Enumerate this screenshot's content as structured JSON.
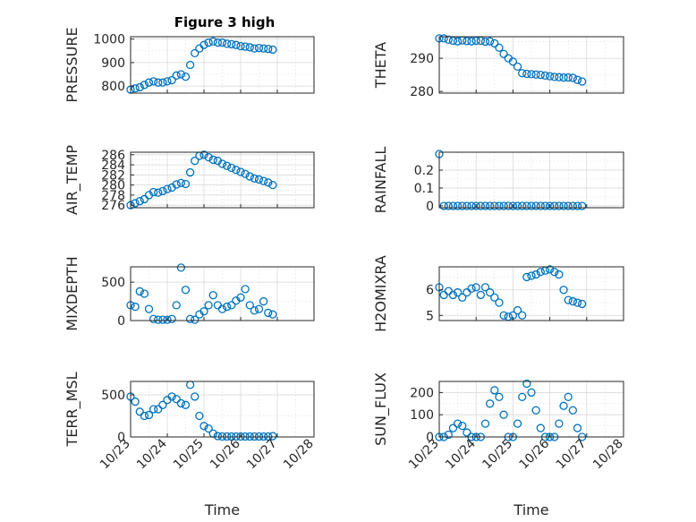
{
  "figure": {
    "title": "Figure 3 high",
    "colors": {
      "marker": "#0072BD",
      "axis": "#262626",
      "grid": "#d9d9d9"
    }
  },
  "chart_data": [
    {
      "type": "scatter",
      "ylabel": "PRESSURE",
      "title": "Figure 3 high",
      "xlim": [
        "10/23",
        "10/28"
      ],
      "ylim": [
        770,
        1010
      ],
      "yticks": [
        800,
        900,
        1000
      ],
      "grid": true,
      "marker": "o",
      "x": [
        "10/23 00:00",
        "10/23 03:00",
        "10/23 06:00",
        "10/23 09:00",
        "10/23 12:00",
        "10/23 15:00",
        "10/23 18:00",
        "10/23 21:00",
        "10/24 00:00",
        "10/24 03:00",
        "10/24 06:00",
        "10/24 09:00",
        "10/24 12:00",
        "10/24 15:00",
        "10/24 18:00",
        "10/24 21:00",
        "10/25 00:00",
        "10/25 03:00",
        "10/25 06:00",
        "10/25 09:00",
        "10/25 12:00",
        "10/25 15:00",
        "10/25 18:00",
        "10/25 21:00",
        "10/26 00:00",
        "10/26 03:00",
        "10/26 06:00",
        "10/26 09:00",
        "10/26 12:00",
        "10/26 15:00",
        "10/26 18:00",
        "10/26 21:00"
      ],
      "y": [
        785,
        790,
        795,
        805,
        815,
        820,
        815,
        815,
        820,
        825,
        845,
        850,
        840,
        890,
        940,
        960,
        975,
        985,
        990,
        985,
        985,
        980,
        978,
        975,
        970,
        968,
        965,
        960,
        962,
        960,
        958,
        955
      ]
    },
    {
      "type": "scatter",
      "ylabel": "THETA",
      "xlim": [
        "10/23",
        "10/28"
      ],
      "ylim": [
        279.5,
        296.5
      ],
      "yticks": [
        280,
        290
      ],
      "grid": true,
      "marker": "o",
      "x": [
        "10/23 00:00",
        "10/23 03:00",
        "10/23 06:00",
        "10/23 09:00",
        "10/23 12:00",
        "10/23 15:00",
        "10/23 18:00",
        "10/23 21:00",
        "10/24 00:00",
        "10/24 03:00",
        "10/24 06:00",
        "10/24 09:00",
        "10/24 12:00",
        "10/24 15:00",
        "10/24 18:00",
        "10/24 21:00",
        "10/25 00:00",
        "10/25 03:00",
        "10/25 06:00",
        "10/25 09:00",
        "10/25 12:00",
        "10/25 15:00",
        "10/25 18:00",
        "10/25 21:00",
        "10/26 00:00",
        "10/26 03:00",
        "10/26 06:00",
        "10/26 09:00",
        "10/26 12:00",
        "10/26 15:00",
        "10/26 18:00",
        "10/26 21:00"
      ],
      "y": [
        296,
        296,
        295.6,
        295.3,
        295.1,
        295.4,
        295.2,
        295.1,
        295.3,
        295.3,
        295,
        295.1,
        294.5,
        293.2,
        291.3,
        290,
        289,
        287.5,
        285.5,
        285.3,
        285.2,
        285.1,
        285,
        284.8,
        284.6,
        284.4,
        284.3,
        284.2,
        284.2,
        284.1,
        283.5,
        283
      ]
    },
    {
      "type": "scatter",
      "ylabel": "AIR_TEMP",
      "xlim": [
        "10/23",
        "10/28"
      ],
      "ylim": [
        275.5,
        286.5
      ],
      "yticks": [
        276,
        278,
        280,
        282,
        284,
        286
      ],
      "grid": true,
      "marker": "o",
      "x": [
        "10/23 00:00",
        "10/23 03:00",
        "10/23 06:00",
        "10/23 09:00",
        "10/23 12:00",
        "10/23 15:00",
        "10/23 18:00",
        "10/23 21:00",
        "10/24 00:00",
        "10/24 03:00",
        "10/24 06:00",
        "10/24 09:00",
        "10/24 12:00",
        "10/24 15:00",
        "10/24 18:00",
        "10/24 21:00",
        "10/25 00:00",
        "10/25 03:00",
        "10/25 06:00",
        "10/25 09:00",
        "10/25 12:00",
        "10/25 15:00",
        "10/25 18:00",
        "10/25 21:00",
        "10/26 00:00",
        "10/26 03:00",
        "10/26 06:00",
        "10/26 09:00",
        "10/26 12:00",
        "10/26 15:00",
        "10/26 18:00",
        "10/26 21:00"
      ],
      "y": [
        276,
        276.4,
        276.8,
        277.2,
        278,
        278.6,
        278.5,
        278.8,
        279.2,
        279.5,
        280.1,
        280.4,
        280.2,
        282.5,
        284.8,
        285.8,
        286,
        285.5,
        285,
        284.8,
        284.2,
        283.8,
        283.4,
        283,
        282.6,
        282.2,
        281.7,
        281.3,
        281.1,
        280.8,
        280.5,
        280
      ]
    },
    {
      "type": "scatter",
      "ylabel": "RAINFALL",
      "xlim": [
        "10/23",
        "10/28"
      ],
      "ylim": [
        -0.01,
        0.3
      ],
      "yticks": [
        0,
        0.1,
        0.2
      ],
      "grid": true,
      "marker": "o",
      "x": [
        "10/23 00:00",
        "10/23 03:00",
        "10/23 06:00",
        "10/23 09:00",
        "10/23 12:00",
        "10/23 15:00",
        "10/23 18:00",
        "10/23 21:00",
        "10/24 00:00",
        "10/24 03:00",
        "10/24 06:00",
        "10/24 09:00",
        "10/24 12:00",
        "10/24 15:00",
        "10/24 18:00",
        "10/24 21:00",
        "10/25 00:00",
        "10/25 03:00",
        "10/25 06:00",
        "10/25 09:00",
        "10/25 12:00",
        "10/25 15:00",
        "10/25 18:00",
        "10/25 21:00",
        "10/26 00:00",
        "10/26 03:00",
        "10/26 06:00",
        "10/26 09:00",
        "10/26 12:00",
        "10/26 15:00",
        "10/26 18:00",
        "10/26 21:00"
      ],
      "y": [
        0.29,
        0,
        0,
        0,
        0,
        0,
        0,
        0,
        0,
        0,
        0,
        0,
        0,
        0,
        0,
        0,
        0,
        0,
        0,
        0,
        0,
        0,
        0,
        0,
        0,
        0,
        0,
        0,
        0,
        0,
        0,
        0
      ]
    },
    {
      "type": "scatter",
      "ylabel": "MIXDEPTH",
      "xlim": [
        "10/23",
        "10/28"
      ],
      "ylim": [
        0,
        700
      ],
      "yticks": [
        0,
        500
      ],
      "grid": true,
      "marker": "o",
      "x": [
        "10/23 00:00",
        "10/23 03:00",
        "10/23 06:00",
        "10/23 09:00",
        "10/23 12:00",
        "10/23 15:00",
        "10/23 18:00",
        "10/23 21:00",
        "10/24 00:00",
        "10/24 03:00",
        "10/24 06:00",
        "10/24 09:00",
        "10/24 12:00",
        "10/24 15:00",
        "10/24 18:00",
        "10/24 21:00",
        "10/25 00:00",
        "10/25 03:00",
        "10/25 06:00",
        "10/25 09:00",
        "10/25 12:00",
        "10/25 15:00",
        "10/25 18:00",
        "10/25 21:00",
        "10/26 00:00",
        "10/26 03:00",
        "10/26 06:00",
        "10/26 09:00",
        "10/26 12:00",
        "10/26 15:00",
        "10/26 18:00",
        "10/26 21:00"
      ],
      "y": [
        200,
        180,
        380,
        350,
        150,
        20,
        10,
        10,
        10,
        20,
        200,
        690,
        400,
        20,
        10,
        80,
        120,
        200,
        330,
        200,
        150,
        180,
        200,
        260,
        300,
        410,
        200,
        130,
        150,
        250,
        100,
        80
      ]
    },
    {
      "type": "scatter",
      "ylabel": "H2OMIXRA",
      "xlim": [
        "10/23",
        "10/28"
      ],
      "ylim": [
        4.8,
        6.9
      ],
      "yticks": [
        5,
        6
      ],
      "grid": true,
      "marker": "o",
      "x": [
        "10/23 00:00",
        "10/23 03:00",
        "10/23 06:00",
        "10/23 09:00",
        "10/23 12:00",
        "10/23 15:00",
        "10/23 18:00",
        "10/23 21:00",
        "10/24 00:00",
        "10/24 03:00",
        "10/24 06:00",
        "10/24 09:00",
        "10/24 12:00",
        "10/24 15:00",
        "10/24 18:00",
        "10/24 21:00",
        "10/25 00:00",
        "10/25 03:00",
        "10/25 06:00",
        "10/25 09:00",
        "10/25 12:00",
        "10/25 15:00",
        "10/25 18:00",
        "10/25 21:00",
        "10/26 00:00",
        "10/26 03:00",
        "10/26 06:00",
        "10/26 09:00",
        "10/26 12:00",
        "10/26 15:00",
        "10/26 18:00",
        "10/26 21:00"
      ],
      "y": [
        6.1,
        5.8,
        5.95,
        5.8,
        5.9,
        5.7,
        5.9,
        6.05,
        6.1,
        5.8,
        6.1,
        5.9,
        5.7,
        5.5,
        5.0,
        4.95,
        5.0,
        5.2,
        5.0,
        6.5,
        6.55,
        6.6,
        6.7,
        6.75,
        6.8,
        6.7,
        6.6,
        6.0,
        5.6,
        5.55,
        5.5,
        5.45
      ]
    },
    {
      "type": "scatter",
      "ylabel": "TERR_MSL",
      "xlim": [
        "10/23",
        "10/28"
      ],
      "ylim": [
        0,
        660
      ],
      "yticks": [
        0,
        500
      ],
      "grid": true,
      "marker": "o",
      "x": [
        "10/23 00:00",
        "10/23 03:00",
        "10/23 06:00",
        "10/23 09:00",
        "10/23 12:00",
        "10/23 15:00",
        "10/23 18:00",
        "10/23 21:00",
        "10/24 00:00",
        "10/24 03:00",
        "10/24 06:00",
        "10/24 09:00",
        "10/24 12:00",
        "10/24 15:00",
        "10/24 18:00",
        "10/24 21:00",
        "10/25 00:00",
        "10/25 03:00",
        "10/25 06:00",
        "10/25 09:00",
        "10/25 12:00",
        "10/25 15:00",
        "10/25 18:00",
        "10/25 21:00",
        "10/26 00:00",
        "10/26 03:00",
        "10/26 06:00",
        "10/26 09:00",
        "10/26 12:00",
        "10/26 15:00",
        "10/26 18:00",
        "10/26 21:00"
      ],
      "y": [
        480,
        420,
        300,
        250,
        260,
        330,
        330,
        380,
        440,
        480,
        450,
        400,
        380,
        620,
        480,
        250,
        130,
        100,
        40,
        10,
        5,
        5,
        5,
        5,
        5,
        5,
        5,
        5,
        5,
        5,
        5,
        10
      ]
    },
    {
      "type": "scatter",
      "ylabel": "SUN_FLUX",
      "xlim": [
        "10/23",
        "10/28"
      ],
      "ylim": [
        0,
        250
      ],
      "yticks": [
        0,
        100,
        200
      ],
      "grid": true,
      "marker": "o",
      "x": [
        "10/23 00:00",
        "10/23 03:00",
        "10/23 06:00",
        "10/23 09:00",
        "10/23 12:00",
        "10/23 15:00",
        "10/23 18:00",
        "10/23 21:00",
        "10/24 00:00",
        "10/24 03:00",
        "10/24 06:00",
        "10/24 09:00",
        "10/24 12:00",
        "10/24 15:00",
        "10/24 18:00",
        "10/24 21:00",
        "10/25 00:00",
        "10/25 03:00",
        "10/25 06:00",
        "10/25 09:00",
        "10/25 12:00",
        "10/25 15:00",
        "10/25 18:00",
        "10/25 21:00",
        "10/26 00:00",
        "10/26 03:00",
        "10/26 06:00",
        "10/26 09:00",
        "10/26 12:00",
        "10/26 15:00",
        "10/26 18:00",
        "10/26 21:00"
      ],
      "y": [
        0,
        0,
        10,
        40,
        60,
        50,
        20,
        0,
        0,
        0,
        60,
        150,
        210,
        180,
        100,
        0,
        0,
        60,
        180,
        240,
        200,
        120,
        40,
        0,
        0,
        0,
        60,
        140,
        180,
        120,
        40,
        0
      ]
    }
  ],
  "xticks": [
    "10/23",
    "10/24",
    "10/25",
    "10/26",
    "10/27",
    "10/28"
  ],
  "xlabel": "Time"
}
